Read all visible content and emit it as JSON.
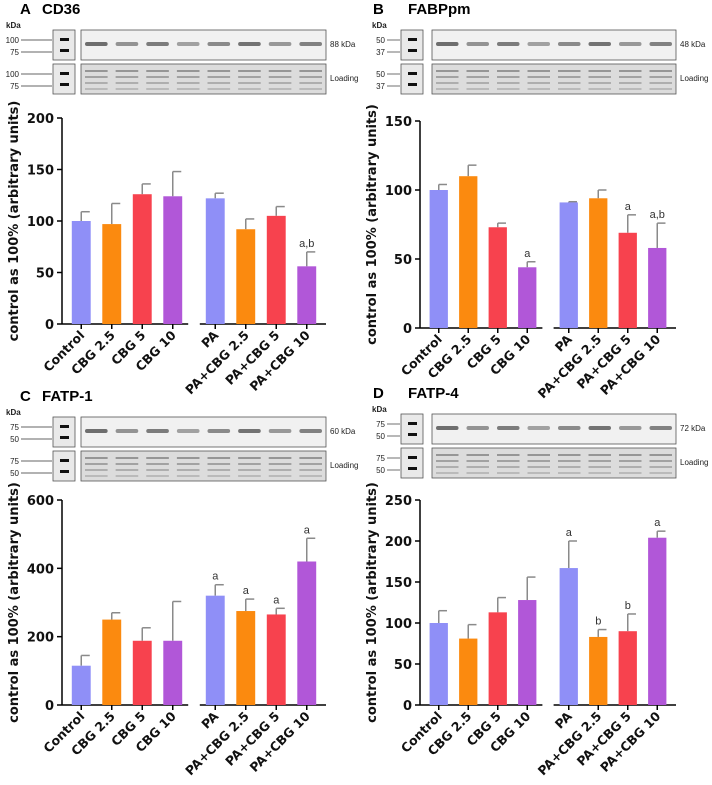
{
  "colors": {
    "control": "#8f8ff7",
    "cbg25": "#fb8a0f",
    "cbg5": "#f7424e",
    "cbg10": "#b157d8",
    "error": "#8a8a8a",
    "axis": "#000000"
  },
  "chart_data": [
    {
      "type": "bar",
      "panel": "A",
      "title": "CD36",
      "ylabel": "control as 100% (arbitrary units)",
      "ylim": [
        0,
        200
      ],
      "yticks": [
        0,
        50,
        100,
        150,
        200
      ],
      "categories": [
        "Control",
        "CBG 2.5",
        "CBG 5",
        "CBG 10",
        "PA",
        "PA+CBG 2.5",
        "PA+CBG 5",
        "PA+CBG 10"
      ],
      "values": [
        100,
        97,
        126,
        124,
        122,
        92,
        105,
        56
      ],
      "errors": [
        9,
        20,
        10,
        24,
        5,
        10,
        9,
        14
      ],
      "annotations": [
        "",
        "",
        "",
        "",
        "",
        "",
        "",
        "a,b"
      ],
      "blot": {
        "kda_label": "kDa",
        "rows": [
          {
            "markers": [
              "100",
              "75"
            ],
            "label": "88 kDa"
          },
          {
            "markers": [
              "100",
              "75"
            ],
            "label": "Loading"
          }
        ]
      }
    },
    {
      "type": "bar",
      "panel": "B",
      "title": "FABPpm",
      "ylabel": "control as 100% (arbitrary units)",
      "ylim": [
        0,
        150
      ],
      "yticks": [
        0,
        50,
        100,
        150
      ],
      "categories": [
        "Control",
        "CBG 2.5",
        "CBG 5",
        "CBG 10",
        "PA",
        "PA+CBG 2.5",
        "PA+CBG 5",
        "PA+CBG 10"
      ],
      "values": [
        100,
        110,
        73,
        44,
        91,
        94,
        69,
        58
      ],
      "errors": [
        4,
        8,
        3,
        4,
        0.5,
        6,
        13,
        18
      ],
      "annotations": [
        "",
        "",
        "",
        "a",
        "",
        "",
        "a",
        "a,b"
      ],
      "blot": {
        "kda_label": "kDa",
        "rows": [
          {
            "markers": [
              "50",
              "37"
            ],
            "label": "48 kDa"
          },
          {
            "markers": [
              "50",
              "37"
            ],
            "label": "Loading"
          }
        ]
      }
    },
    {
      "type": "bar",
      "panel": "C",
      "title": "FATP-1",
      "ylabel": "control as 100% (arbitrary units)",
      "ylim": [
        0,
        600
      ],
      "yticks": [
        0,
        200,
        400,
        600
      ],
      "categories": [
        "Control",
        "CBG 2.5",
        "CBG 5",
        "CBG 10",
        "PA",
        "PA+CBG 2.5",
        "PA+CBG 5",
        "PA+CBG 10"
      ],
      "values": [
        115,
        250,
        188,
        188,
        320,
        275,
        265,
        420
      ],
      "errors": [
        30,
        20,
        38,
        115,
        32,
        35,
        18,
        68
      ],
      "annotations": [
        "",
        "",
        "",
        "",
        "a",
        "a",
        "a",
        "a"
      ],
      "blot": {
        "kda_label": "kDa",
        "rows": [
          {
            "markers": [
              "75",
              "50"
            ],
            "label": "60 kDa"
          },
          {
            "markers": [
              "75",
              "50"
            ],
            "label": "Loading"
          }
        ]
      }
    },
    {
      "type": "bar",
      "panel": "D",
      "title": "FATP-4",
      "ylabel": "control as 100% (arbitrary units)",
      "ylim": [
        0,
        250
      ],
      "yticks": [
        0,
        50,
        100,
        150,
        200,
        250
      ],
      "categories": [
        "Control",
        "CBG 2.5",
        "CBG 5",
        "CBG 10",
        "PA",
        "PA+CBG 2.5",
        "PA+CBG 5",
        "PA+CBG 10"
      ],
      "values": [
        100,
        81,
        113,
        128,
        167,
        83,
        90,
        204
      ],
      "errors": [
        15,
        17,
        18,
        28,
        33,
        9,
        21,
        8
      ],
      "annotations": [
        "",
        "",
        "",
        "",
        "a",
        "b",
        "b",
        "a"
      ],
      "blot": {
        "kda_label": "kDa",
        "rows": [
          {
            "markers": [
              "75",
              "50"
            ],
            "label": "72 kDa"
          },
          {
            "markers": [
              "75",
              "50"
            ],
            "label": "Loading"
          }
        ]
      }
    }
  ]
}
